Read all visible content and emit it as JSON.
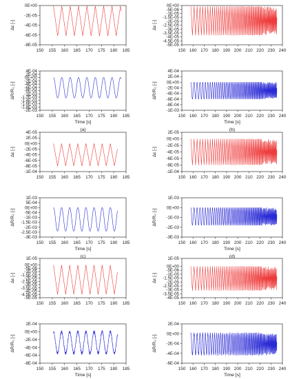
{
  "colors": {
    "strain": "#ee3b3b",
    "resistance": "#2b2bd6",
    "axis": "#333333"
  },
  "chart_data": [
    {
      "type": "line",
      "panel": "a",
      "part": "top",
      "series_color": "strain",
      "ylabel": "Δε [-]",
      "xlabel": "",
      "caption": "",
      "xlim": [
        150,
        185
      ],
      "xticks": [
        "150",
        "155",
        "160",
        "165",
        "170",
        "175",
        "180",
        "185"
      ],
      "ylim": [
        -8e-05,
        0
      ],
      "yticks": [
        "0E+00",
        "-2E-05",
        "-4E-05",
        "-6E-05",
        "-8E-05"
      ],
      "wave": {
        "shape": "triangle",
        "t_start": 155.5,
        "t_end": 183,
        "period": 3.4,
        "max": -1e-06,
        "min": -6.2e-05
      }
    },
    {
      "type": "line",
      "panel": "a",
      "part": "bottom",
      "series_color": "resistance",
      "ylabel": "ΔR/R₀ [-]",
      "xlabel": "Time [s]",
      "caption": "(a)",
      "xlim": [
        150,
        185
      ],
      "xticks": [
        "150",
        "155",
        "160",
        "165",
        "170",
        "175",
        "180",
        "185"
      ],
      "ylim": [
        -0.002,
        0.0004
      ],
      "yticks": [
        "4E-04",
        "2E-04",
        "0E+00",
        "-2E-04",
        "-4E-04",
        "-6E-04",
        "-8E-04",
        "-1E-03",
        "-1.2E-03",
        "-1.4E-03",
        "-1.6E-03",
        "-1.8E-03",
        "-2E-03"
      ],
      "wave": {
        "shape": "sine",
        "t_start": 155.5,
        "t_end": 183,
        "period": 3.4,
        "max": 0.0,
        "min": -0.00125
      }
    },
    {
      "type": "line",
      "panel": "b",
      "part": "top",
      "series_color": "strain",
      "ylabel": "Δε [-]",
      "xlabel": "",
      "caption": "",
      "xlim": [
        150,
        240
      ],
      "xticks": [
        "150",
        "160",
        "170",
        "180",
        "190",
        "200",
        "210",
        "220",
        "230",
        "240"
      ],
      "ylim": [
        -5e-05,
        0
      ],
      "yticks": [
        "0E+00",
        "-5E-06",
        "-1E-05",
        "-1.5E-05",
        "-2E-05",
        "-2.5E-05",
        "-3E-05",
        "-3.5E-05",
        "-4E-05",
        "-4.5E-05",
        "-5E-05"
      ],
      "wave": {
        "shape": "triangle_chirp",
        "t_start": 158,
        "t_end": 235,
        "period_start": 3.0,
        "period_end": 0.6,
        "max": -1e-06,
        "min": -3.8e-05,
        "noisy_tail_from": 222
      }
    },
    {
      "type": "line",
      "panel": "b",
      "part": "bottom",
      "series_color": "resistance",
      "ylabel": "ΔR/R₀ [-]",
      "xlabel": "Time [s]",
      "caption": "(b)",
      "xlim": [
        150,
        240
      ],
      "xticks": [
        "150",
        "160",
        "170",
        "180",
        "190",
        "200",
        "210",
        "220",
        "230",
        "240"
      ],
      "ylim": [
        -0.001,
        0.0004
      ],
      "yticks": [
        "4E-04",
        "2E-04",
        "0E+00",
        "-2E-04",
        "-4E-04",
        "-6E-04",
        "-8E-04",
        "-1E-03"
      ],
      "wave": {
        "shape": "sine_chirp",
        "t_start": 158,
        "t_end": 235,
        "period_start": 3.0,
        "period_end": 0.6,
        "max": 0.0,
        "min": -0.0006,
        "noisy_tail_from": 222
      }
    },
    {
      "type": "line",
      "panel": "c",
      "part": "top",
      "series_color": "strain",
      "ylabel": "Δε [-]",
      "xlabel": "",
      "caption": "",
      "xlim": [
        150,
        185
      ],
      "xticks": [
        "150",
        "155",
        "160",
        "165",
        "170",
        "175",
        "180",
        "185"
      ],
      "ylim": [
        -0.0001,
        4e-05
      ],
      "yticks": [
        "4E-05",
        "2E-05",
        "0E+00",
        "-2E-05",
        "-4E-05",
        "-6E-05",
        "-8E-05",
        "-1E-04"
      ],
      "wave": {
        "shape": "triangle",
        "t_start": 155.5,
        "t_end": 181.5,
        "period": 3.3,
        "max": 0.0,
        "min": -8e-05
      }
    },
    {
      "type": "line",
      "panel": "c",
      "part": "bottom",
      "series_color": "resistance",
      "ylabel": "ΔR/R₀ [-]",
      "xlabel": "Time [s]",
      "caption": "(c)",
      "xlim": [
        150,
        185
      ],
      "xticks": [
        "150",
        "155",
        "160",
        "165",
        "170",
        "175",
        "180",
        "185"
      ],
      "ylim": [
        -0.003,
        0.001
      ],
      "yticks": [
        "1E-03",
        "5E-04",
        "0E+00",
        "-5E-04",
        "-1E-03",
        "-1.5E-03",
        "-2E-03",
        "-2.5E-03",
        "-3E-03"
      ],
      "wave": {
        "shape": "sine",
        "t_start": 155.5,
        "t_end": 181.5,
        "period": 3.3,
        "max": 0.0,
        "min": -0.0024
      }
    },
    {
      "type": "line",
      "panel": "d",
      "part": "top",
      "series_color": "strain",
      "ylabel": "Δε [-]",
      "xlabel": "",
      "caption": "",
      "xlim": [
        150,
        240
      ],
      "xticks": [
        "150",
        "160",
        "170",
        "180",
        "190",
        "200",
        "210",
        "220",
        "230",
        "240"
      ],
      "ylim": [
        -0.0001,
        2e-05
      ],
      "yticks": [
        "2E-05",
        "0E+00",
        "-2E-05",
        "-4E-05",
        "-6E-05",
        "-8E-05",
        "-1E-04"
      ],
      "wave": {
        "shape": "triangle_chirp",
        "t_start": 158,
        "t_end": 235,
        "period_start": 3.0,
        "period_end": 0.6,
        "max": 0.0,
        "min": -8e-05,
        "noisy_tail_from": 222
      }
    },
    {
      "type": "line",
      "panel": "d",
      "part": "bottom",
      "series_color": "resistance",
      "ylabel": "ΔR/R₀ [-]",
      "xlabel": "Time [s]",
      "caption": "(d)",
      "xlim": [
        150,
        240
      ],
      "xticks": [
        "150",
        "160",
        "170",
        "180",
        "190",
        "200",
        "210",
        "220",
        "230",
        "240"
      ],
      "ylim": [
        -0.003,
        0.001
      ],
      "yticks": [
        "1E-03",
        "0E+00",
        "-1E-03",
        "-2E-03",
        "-3E-03"
      ],
      "wave": {
        "shape": "sine_chirp",
        "t_start": 158,
        "t_end": 235,
        "period_start": 3.0,
        "period_end": 0.6,
        "max": 0.0,
        "min": -0.0018,
        "noisy_tail_from": 222
      }
    },
    {
      "type": "line",
      "panel": "e",
      "part": "top",
      "series_color": "strain",
      "ylabel": "Δε [-]",
      "xlabel": "",
      "caption": "",
      "xlim": [
        150,
        185
      ],
      "xticks": [
        "150",
        "155",
        "160",
        "165",
        "170",
        "175",
        "180",
        "185"
      ],
      "ylim": [
        -5e-05,
        1e-05
      ],
      "yticks": [
        "1E-05",
        "0E+00",
        "-5E-06",
        "-1E-05",
        "-1.5E-05",
        "-2E-05",
        "-2.5E-05",
        "-3E-05",
        "-3.5E-05",
        "-4E-05",
        "-4.5E-05",
        "-5E-05"
      ],
      "wave": {
        "shape": "triangle",
        "t_start": 155.5,
        "t_end": 181.5,
        "period": 3.3,
        "max": 0.0,
        "min": -4.5e-05
      }
    },
    {
      "type": "line",
      "panel": "e",
      "part": "bottom",
      "series_color": "resistance",
      "ylabel": "ΔR/R₀ [-]",
      "xlabel": "Time [s]",
      "caption": "(e)",
      "xlim": [
        150,
        185
      ],
      "xticks": [
        "150",
        "155",
        "160",
        "165",
        "170",
        "175",
        "180",
        "185"
      ],
      "ylim": [
        -0.0008,
        0.0002
      ],
      "yticks": [
        "2E-04",
        "0E+00",
        "-2E-04",
        "-4E-04",
        "-6E-04",
        "-8E-04"
      ],
      "wave": {
        "shape": "sine_noisy",
        "t_start": 155.5,
        "t_end": 181.5,
        "period": 3.3,
        "max": 0.0,
        "min": -0.00055
      }
    },
    {
      "type": "line",
      "panel": "f",
      "part": "top",
      "series_color": "strain",
      "ylabel": "Δε [-]",
      "xlabel": "",
      "caption": "",
      "xlim": [
        150,
        240
      ],
      "xticks": [
        "150",
        "160",
        "170",
        "180",
        "190",
        "200",
        "210",
        "220",
        "230",
        "240"
      ],
      "ylim": [
        -4e-05,
        1e-05
      ],
      "yticks": [
        "1E-05",
        "0E+00",
        "-5E-06",
        "-1E-05",
        "-1.5E-05",
        "-2E-05",
        "-2.5E-05",
        "-3E-05",
        "-3.5E-05",
        "-4E-05"
      ],
      "wave": {
        "shape": "triangle_chirp",
        "t_start": 158,
        "t_end": 235,
        "period_start": 3.0,
        "period_end": 0.6,
        "max": 0.0,
        "min": -3.1e-05,
        "noisy_tail_from": 222
      }
    },
    {
      "type": "line",
      "panel": "f",
      "part": "bottom",
      "series_color": "resistance",
      "ylabel": "ΔR/R₀ [-]",
      "xlabel": "Time [s]",
      "caption": "(f)",
      "xlim": [
        150,
        240
      ],
      "xticks": [
        "150",
        "160",
        "170",
        "180",
        "190",
        "200",
        "210",
        "220",
        "230",
        "240"
      ],
      "ylim": [
        -0.0006,
        0.0002
      ],
      "yticks": [
        "2E-04",
        "0E+00",
        "-2E-04",
        "-4E-04",
        "-6E-04"
      ],
      "wave": {
        "shape": "sine_chirp_noisy",
        "t_start": 158,
        "t_end": 235,
        "period_start": 3.0,
        "period_end": 0.6,
        "max": 0.0,
        "min": -0.00042,
        "noisy_tail_from": 222
      }
    }
  ]
}
